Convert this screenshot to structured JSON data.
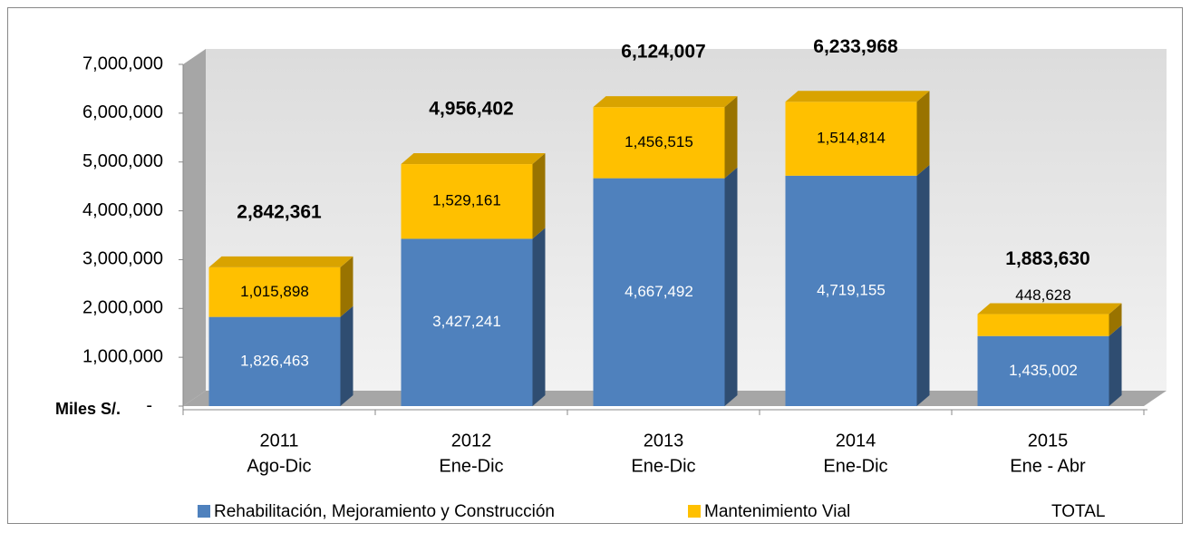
{
  "chart_data": {
    "type": "bar3d_stacked",
    "y_axis_label": "Miles S/.",
    "categories": [
      [
        "2011",
        "Ago-Dic"
      ],
      [
        "2012",
        "Ene-Dic"
      ],
      [
        "2013",
        "Ene-Dic"
      ],
      [
        "2014",
        "Ene-Dic"
      ],
      [
        "2015",
        "Ene - Abr"
      ]
    ],
    "series": [
      {
        "name": "Rehabilitación, Mejoramiento y Construcción",
        "color": "#4f81bd",
        "values": [
          1826463,
          3427241,
          4667492,
          4719155,
          1435002
        ],
        "value_labels": [
          "1,826,463",
          "3,427,241",
          "4,667,492",
          "4,719,155",
          "1,435,002"
        ]
      },
      {
        "name": "Mantenimiento Vial",
        "color": "#ffc000",
        "values": [
          1015898,
          1529161,
          1456515,
          1514814,
          448628
        ],
        "value_labels": [
          "1,015,898",
          "1,529,161",
          "1,456,515",
          "1,514,814",
          "448,628"
        ]
      }
    ],
    "totals": {
      "name": "TOTAL",
      "values": [
        2842361,
        4956402,
        6124007,
        6233968,
        1883630
      ],
      "value_labels": [
        "2,842,361",
        "4,956,402",
        "6,124,007",
        "6,233,968",
        "1,883,630"
      ]
    },
    "ylim": [
      0,
      7000000
    ],
    "yticks": [
      {
        "value": 0,
        "label": "-"
      },
      {
        "value": 1000000,
        "label": "1,000,000"
      },
      {
        "value": 2000000,
        "label": "2,000,000"
      },
      {
        "value": 3000000,
        "label": "3,000,000"
      },
      {
        "value": 4000000,
        "label": "4,000,000"
      },
      {
        "value": 5000000,
        "label": "5,000,000"
      },
      {
        "value": 6000000,
        "label": "6,000,000"
      },
      {
        "value": 7000000,
        "label": "7,000,000"
      }
    ]
  }
}
